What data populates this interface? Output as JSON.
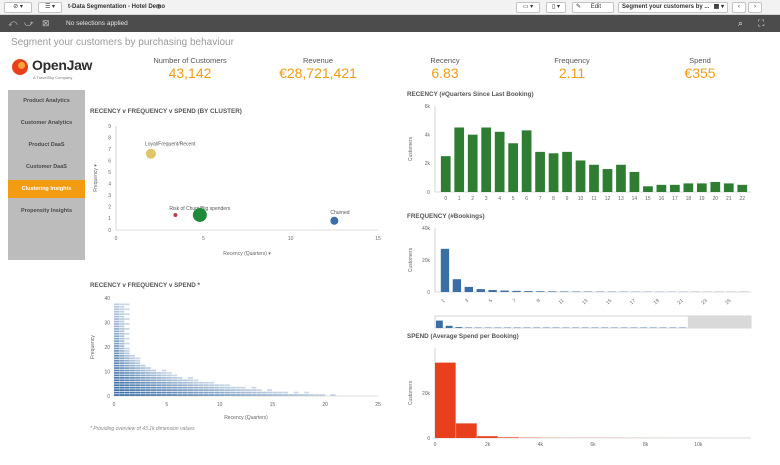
{
  "toolbar": {
    "app_title": "t-Data Segmentation - Hotel Demo",
    "edit_label": "Edit",
    "sheet_title": "Segment your customers by ..."
  },
  "selections": {
    "label": "No selections applied"
  },
  "page": {
    "title": "Segment your customers by purchasing behaviour"
  },
  "logo": {
    "name": "OpenJaw",
    "tagline": "A TravelSky Company"
  },
  "kpis": [
    {
      "label": "Number of Customers",
      "value": "43,142"
    },
    {
      "label": "Revenue",
      "value": "€28,721,421"
    },
    {
      "label": "Recency",
      "value": "6.83"
    },
    {
      "label": "Frequency",
      "value": "2.11"
    },
    {
      "label": "Spend",
      "value": "€355"
    }
  ],
  "nav": {
    "items": [
      {
        "label": "Product Analytics"
      },
      {
        "label": "Customer Analytics"
      },
      {
        "label": "Product DaaS"
      },
      {
        "label": "Customer DaaS"
      },
      {
        "label": "Clustering Insights"
      },
      {
        "label": "Propensity Insights"
      }
    ],
    "active_index": 4
  },
  "footnote": "* Providing overview of 43.1k dimension values.",
  "colors": {
    "accent": "#f39c12",
    "green": "#2e7d32",
    "blue": "#3a6ea5",
    "red": "#e8401c"
  },
  "chart_data": [
    {
      "type": "scatter",
      "title": "RECENCY v FREQUENCY v SPEND (BY CLUSTER)",
      "xlabel": "Recency (Quarters)",
      "ylabel": "Frequency",
      "xlim": [
        0,
        15
      ],
      "ylim": [
        0,
        9
      ],
      "xticks": [
        0,
        5,
        10,
        15
      ],
      "yticks": [
        0,
        1,
        2,
        3,
        4,
        5,
        6,
        7,
        8,
        9
      ],
      "points": [
        {
          "label": "Loyal/Frequent/Recent",
          "x": 2,
          "y": 6.6,
          "size": 5,
          "color": "#e0c667"
        },
        {
          "label": "Risk of Churn/Big spenders",
          "x": 3.4,
          "y": 1.3,
          "size": 2,
          "color": "#c0394b"
        },
        {
          "label": "",
          "x": 4.8,
          "y": 1.3,
          "size": 7,
          "color": "#1e8a3a"
        },
        {
          "label": "Churned",
          "x": 12.5,
          "y": 0.8,
          "size": 4,
          "color": "#3a6ea5"
        }
      ]
    },
    {
      "type": "bar",
      "title": "RECENCY (#Quarters Since Last Booking)",
      "ylabel": "Customers",
      "ylim": [
        0,
        6000
      ],
      "yticks": [
        "0",
        "2k",
        "4k",
        "6k"
      ],
      "categories": [
        "0",
        "1",
        "2",
        "3",
        "4",
        "5",
        "6",
        "7",
        "8",
        "9",
        "10",
        "11",
        "12",
        "13",
        "14",
        "15",
        "16",
        "17",
        "18",
        "19",
        "20",
        "21",
        "22"
      ],
      "values": [
        2500,
        4500,
        4000,
        4500,
        4200,
        3400,
        4300,
        2800,
        2700,
        2800,
        2200,
        1900,
        1600,
        1900,
        1400,
        400,
        500,
        500,
        600,
        600,
        700,
        600,
        500
      ],
      "color": "#2e7d32"
    },
    {
      "type": "bar",
      "title": "FREQUENCY (#Bookings)",
      "ylabel": "Customers",
      "ylim": [
        0,
        40000
      ],
      "yticks": [
        "0",
        "20k",
        "40k"
      ],
      "categories": [
        "1",
        "2",
        "3",
        "4",
        "5",
        "6",
        "7",
        "8",
        "9",
        "10",
        "11",
        "12",
        "13",
        "14",
        "15",
        "16",
        "17",
        "18",
        "19",
        "20",
        "21",
        "22",
        "23",
        "24",
        "25",
        "26"
      ],
      "values": [
        27000,
        8000,
        3200,
        1800,
        1200,
        900,
        700,
        550,
        450,
        380,
        320,
        280,
        240,
        210,
        190,
        170,
        150,
        140,
        130,
        120,
        110,
        100,
        95,
        90,
        85,
        80
      ],
      "xticks": [
        "1",
        "3",
        "5",
        "7",
        "9",
        "11",
        "13",
        "15",
        "17",
        "19",
        "21",
        "23",
        "25"
      ],
      "color": "#3a6ea5"
    },
    {
      "type": "bar",
      "title": "SPEND (Average Spend per Booking)",
      "ylabel": "Customers",
      "ylim": [
        0,
        40000
      ],
      "yticks": [
        "0",
        "20k"
      ],
      "xlim": [
        0,
        12000
      ],
      "xticks": [
        "0",
        "2k",
        "4k",
        "6k",
        "8k",
        "10k"
      ],
      "bin_width": 800,
      "values": [
        33500,
        6500,
        800,
        300,
        150,
        80,
        60,
        50,
        40,
        30,
        25,
        20,
        15,
        12,
        10
      ],
      "color": "#e8401c"
    },
    {
      "type": "heatmap",
      "title": "RECENCY v FREQUENCY v SPEND *",
      "xlabel": "Recency (Quarters)",
      "ylabel": "Frequency",
      "xlim": [
        0,
        25
      ],
      "ylim": [
        0,
        40
      ],
      "xticks": [
        0,
        5,
        10,
        15,
        20,
        25
      ],
      "yticks": [
        0,
        10,
        20,
        30,
        40
      ],
      "color": "#3a6ea5"
    }
  ]
}
